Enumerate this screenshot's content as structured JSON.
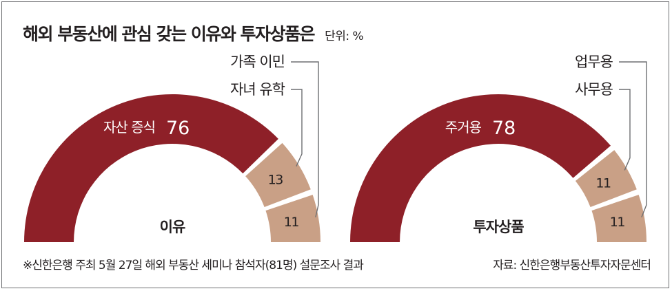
{
  "title": "해외 부동산에 관심 갖는 이유와 투자상품은",
  "unit": "단위: %",
  "footnote": "※신한은행 주최 5월 27일 해외 부동산 세미나 참석자(81명) 설문조사 결과",
  "source": "자료: 신한은행부동산투자자문센터",
  "colors": {
    "main": "#8e2028",
    "minor": "#c9a086",
    "leader": "#6d6e71"
  },
  "chart_data": [
    {
      "type": "pie",
      "variant": "half-donut",
      "title": "이유",
      "slices": [
        {
          "label": "자산 증식",
          "value": 76
        },
        {
          "label": "자녀 유학",
          "value": 13
        },
        {
          "label": "가족 이민",
          "value": 11
        }
      ]
    },
    {
      "type": "pie",
      "variant": "half-donut",
      "title": "투자상품",
      "slices": [
        {
          "label": "주거용",
          "value": 78
        },
        {
          "label": "사무용",
          "value": 11
        },
        {
          "label": "업무용",
          "value": 11
        }
      ]
    }
  ]
}
